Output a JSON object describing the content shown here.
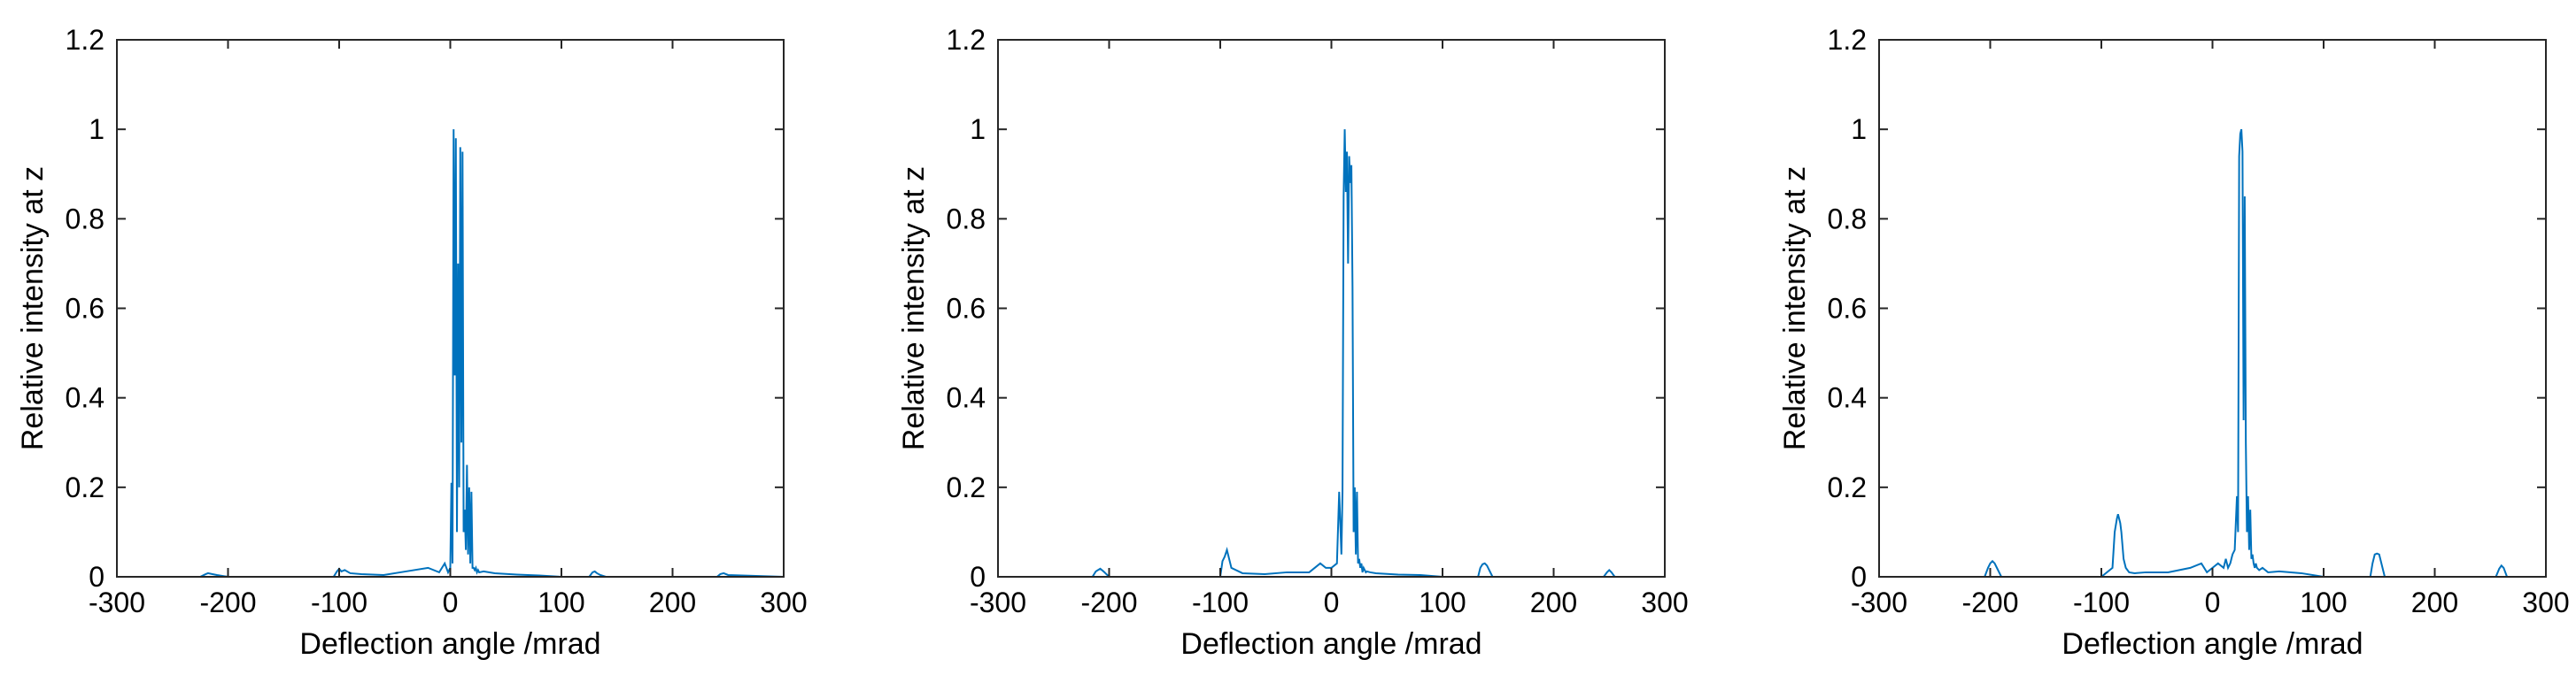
{
  "chart_data": [
    {
      "type": "line",
      "xlabel": "Deflection angle /mrad",
      "ylabel": "Relative intensity at z",
      "xlim": [
        -300,
        300
      ],
      "ylim": [
        0,
        1.2
      ],
      "xticks": [
        -300,
        -200,
        -100,
        0,
        100,
        200,
        300
      ],
      "yticks": [
        0,
        0.2,
        0.4,
        0.6,
        0.8,
        1,
        1.2
      ],
      "xtick_labels": [
        "-300",
        "-200",
        "-100",
        "0",
        "100",
        "200",
        "300"
      ],
      "ytick_labels": [
        "0",
        "0.2",
        "0.4",
        "0.6",
        "0.8",
        "1",
        "1.2"
      ],
      "grid": false,
      "series": [
        {
          "color": "#0072BD",
          "x": [
            -300,
            -225,
            -220,
            -218,
            -214,
            -210,
            -200,
            -105,
            -102,
            -100,
            -98,
            -95,
            -90,
            -80,
            -60,
            -40,
            -20,
            -10,
            -5,
            -2,
            0,
            1,
            2,
            3,
            4,
            5,
            6,
            7,
            8,
            9,
            10,
            11,
            12,
            13,
            14,
            15,
            16,
            17,
            18,
            19,
            20,
            21,
            22,
            23,
            24,
            25,
            26,
            30,
            40,
            60,
            80,
            100,
            125,
            128,
            130,
            132,
            135,
            140,
            200,
            240,
            243,
            246,
            250,
            300
          ],
          "y": [
            0,
            0,
            0.006,
            0.008,
            0.006,
            0.004,
            0,
            0,
            0.012,
            0.018,
            0.012,
            0.015,
            0.008,
            0.006,
            0.004,
            0.012,
            0.02,
            0.01,
            0.03,
            0.01,
            0.02,
            0.21,
            0.03,
            1.0,
            0.45,
            0.98,
            0.1,
            0.7,
            0.2,
            0.96,
            0.3,
            0.95,
            0.1,
            0.15,
            0.06,
            0.25,
            0.05,
            0.2,
            0.03,
            0.19,
            0.02,
            0.02,
            0.015,
            0.02,
            0.01,
            0.015,
            0.01,
            0.012,
            0.008,
            0.005,
            0.003,
            0,
            0,
            0.01,
            0.012,
            0.008,
            0.004,
            0,
            0,
            0,
            0.006,
            0.008,
            0.004,
            0
          ]
        }
      ]
    },
    {
      "type": "line",
      "xlabel": "Deflection angle /mrad",
      "ylabel": "Relative intensity at z",
      "xlim": [
        -300,
        300
      ],
      "ylim": [
        0,
        1.2
      ],
      "xticks": [
        -300,
        -200,
        -100,
        0,
        100,
        200,
        300
      ],
      "yticks": [
        0,
        0.2,
        0.4,
        0.6,
        0.8,
        1,
        1.2
      ],
      "xtick_labels": [
        "-300",
        "-200",
        "-100",
        "0",
        "100",
        "200",
        "300"
      ],
      "ytick_labels": [
        "0",
        "0.2",
        "0.4",
        "0.6",
        "0.8",
        "1",
        "1.2"
      ],
      "grid": false,
      "series": [
        {
          "color": "#0072BD",
          "x": [
            -300,
            -215,
            -212,
            -210,
            -208,
            -205,
            -200,
            -100,
            -98,
            -96,
            -94,
            -92,
            -90,
            -80,
            -60,
            -40,
            -20,
            -10,
            -5,
            0,
            5,
            7,
            9,
            10,
            11,
            12,
            13,
            14,
            15,
            16,
            17,
            18,
            19,
            20,
            21,
            22,
            23,
            24,
            25,
            26,
            27,
            28,
            29,
            30,
            31,
            32,
            35,
            40,
            60,
            80,
            100,
            132,
            134,
            136,
            138,
            140,
            145,
            200,
            245,
            248,
            250,
            252,
            255,
            300
          ],
          "y": [
            0,
            0,
            0.012,
            0.015,
            0.018,
            0.012,
            0,
            0,
            0.035,
            0.045,
            0.06,
            0.04,
            0.02,
            0.008,
            0.006,
            0.01,
            0.01,
            0.03,
            0.02,
            0.02,
            0.03,
            0.19,
            0.05,
            0.19,
            0.85,
            1.0,
            0.86,
            0.95,
            0.7,
            0.94,
            0.88,
            0.92,
            0.65,
            0.1,
            0.2,
            0.05,
            0.19,
            0.03,
            0.04,
            0.02,
            0.03,
            0.01,
            0.02,
            0.015,
            0.01,
            0.012,
            0.01,
            0.008,
            0.005,
            0.004,
            0,
            0,
            0.02,
            0.028,
            0.03,
            0.025,
            0,
            0,
            0,
            0.01,
            0.015,
            0.01,
            0,
            0
          ]
        }
      ]
    },
    {
      "type": "line",
      "xlabel": "Deflection angle /mrad",
      "ylabel": "Relative intensity at z",
      "xlim": [
        -300,
        300
      ],
      "ylim": [
        0,
        1.2
      ],
      "xticks": [
        -300,
        -200,
        -100,
        0,
        100,
        200,
        300
      ],
      "yticks": [
        0,
        0.2,
        0.4,
        0.6,
        0.8,
        1,
        1.2
      ],
      "xtick_labels": [
        "-300",
        "-200",
        "-100",
        "0",
        "100",
        "200",
        "300"
      ],
      "ytick_labels": [
        "0",
        "0.2",
        "0.4",
        "0.6",
        "0.8",
        "1",
        "1.2"
      ],
      "grid": false,
      "series": [
        {
          "color": "#0072BD",
          "x": [
            -300,
            -205,
            -202,
            -200,
            -198,
            -196,
            -194,
            -190,
            -100,
            -90,
            -88,
            -86,
            -85,
            -84,
            -83,
            -82,
            -80,
            -78,
            -75,
            -70,
            -60,
            -40,
            -20,
            -10,
            -5,
            0,
            5,
            10,
            12,
            14,
            16,
            18,
            20,
            22,
            23,
            24,
            25,
            26,
            27,
            28,
            29,
            30,
            31,
            32,
            33,
            34,
            35,
            36,
            37,
            38,
            39,
            40,
            42,
            45,
            50,
            60,
            80,
            100,
            142,
            144,
            146,
            148,
            150,
            152,
            155,
            200,
            255,
            258,
            260,
            262,
            265,
            300
          ],
          "y": [
            0,
            0,
            0.02,
            0.03,
            0.035,
            0.03,
            0.02,
            0,
            0,
            0.02,
            0.1,
            0.13,
            0.14,
            0.13,
            0.12,
            0.1,
            0.04,
            0.02,
            0.01,
            0.008,
            0.01,
            0.01,
            0.02,
            0.03,
            0.01,
            0.02,
            0.03,
            0.02,
            0.04,
            0.02,
            0.03,
            0.05,
            0.06,
            0.18,
            0.1,
            0.94,
            0.99,
            1.0,
            0.95,
            0.35,
            0.85,
            0.3,
            0.1,
            0.18,
            0.06,
            0.15,
            0.04,
            0.05,
            0.03,
            0.02,
            0.03,
            0.02,
            0.015,
            0.02,
            0.01,
            0.012,
            0.008,
            0,
            0,
            0.03,
            0.05,
            0.052,
            0.05,
            0.03,
            0,
            0,
            0,
            0.018,
            0.025,
            0.02,
            0,
            0
          ]
        }
      ]
    }
  ]
}
